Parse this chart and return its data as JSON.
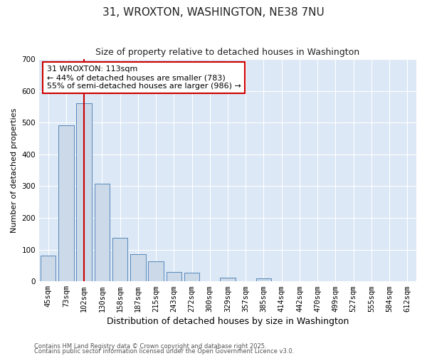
{
  "title": "31, WROXTON, WASHINGTON, NE38 7NU",
  "subtitle": "Size of property relative to detached houses in Washington",
  "xlabel": "Distribution of detached houses by size in Washington",
  "ylabel": "Number of detached properties",
  "categories": [
    "45sqm",
    "73sqm",
    "102sqm",
    "130sqm",
    "158sqm",
    "187sqm",
    "215sqm",
    "243sqm",
    "272sqm",
    "300sqm",
    "329sqm",
    "357sqm",
    "385sqm",
    "414sqm",
    "442sqm",
    "470sqm",
    "499sqm",
    "527sqm",
    "555sqm",
    "584sqm",
    "612sqm"
  ],
  "values": [
    82,
    492,
    560,
    307,
    137,
    85,
    63,
    30,
    28,
    0,
    12,
    0,
    10,
    0,
    0,
    0,
    0,
    0,
    0,
    0,
    0
  ],
  "bar_color": "#ccd9e8",
  "bar_edge_color": "#5588bb",
  "background_color": "#dce8f5",
  "grid_color": "#ffffff",
  "vline_index": 2,
  "vline_color": "#cc0000",
  "annotation_title": "31 WROXTON: 113sqm",
  "annotation_line1": "← 44% of detached houses are smaller (783)",
  "annotation_line2": "55% of semi-detached houses are larger (986) →",
  "annotation_box_facecolor": "#ffffff",
  "annotation_box_edgecolor": "#cc0000",
  "ylim": [
    0,
    700
  ],
  "yticks": [
    0,
    100,
    200,
    300,
    400,
    500,
    600,
    700
  ],
  "title_fontsize": 11,
  "subtitle_fontsize": 9,
  "xlabel_fontsize": 9,
  "ylabel_fontsize": 8,
  "tick_fontsize": 7.5,
  "footer1": "Contains HM Land Registry data © Crown copyright and database right 2025.",
  "footer2": "Contains public sector information licensed under the Open Government Licence v3.0.",
  "footer_fontsize": 6,
  "fig_width": 6.0,
  "fig_height": 5.0,
  "fig_dpi": 100,
  "fig_facecolor": "#ffffff"
}
